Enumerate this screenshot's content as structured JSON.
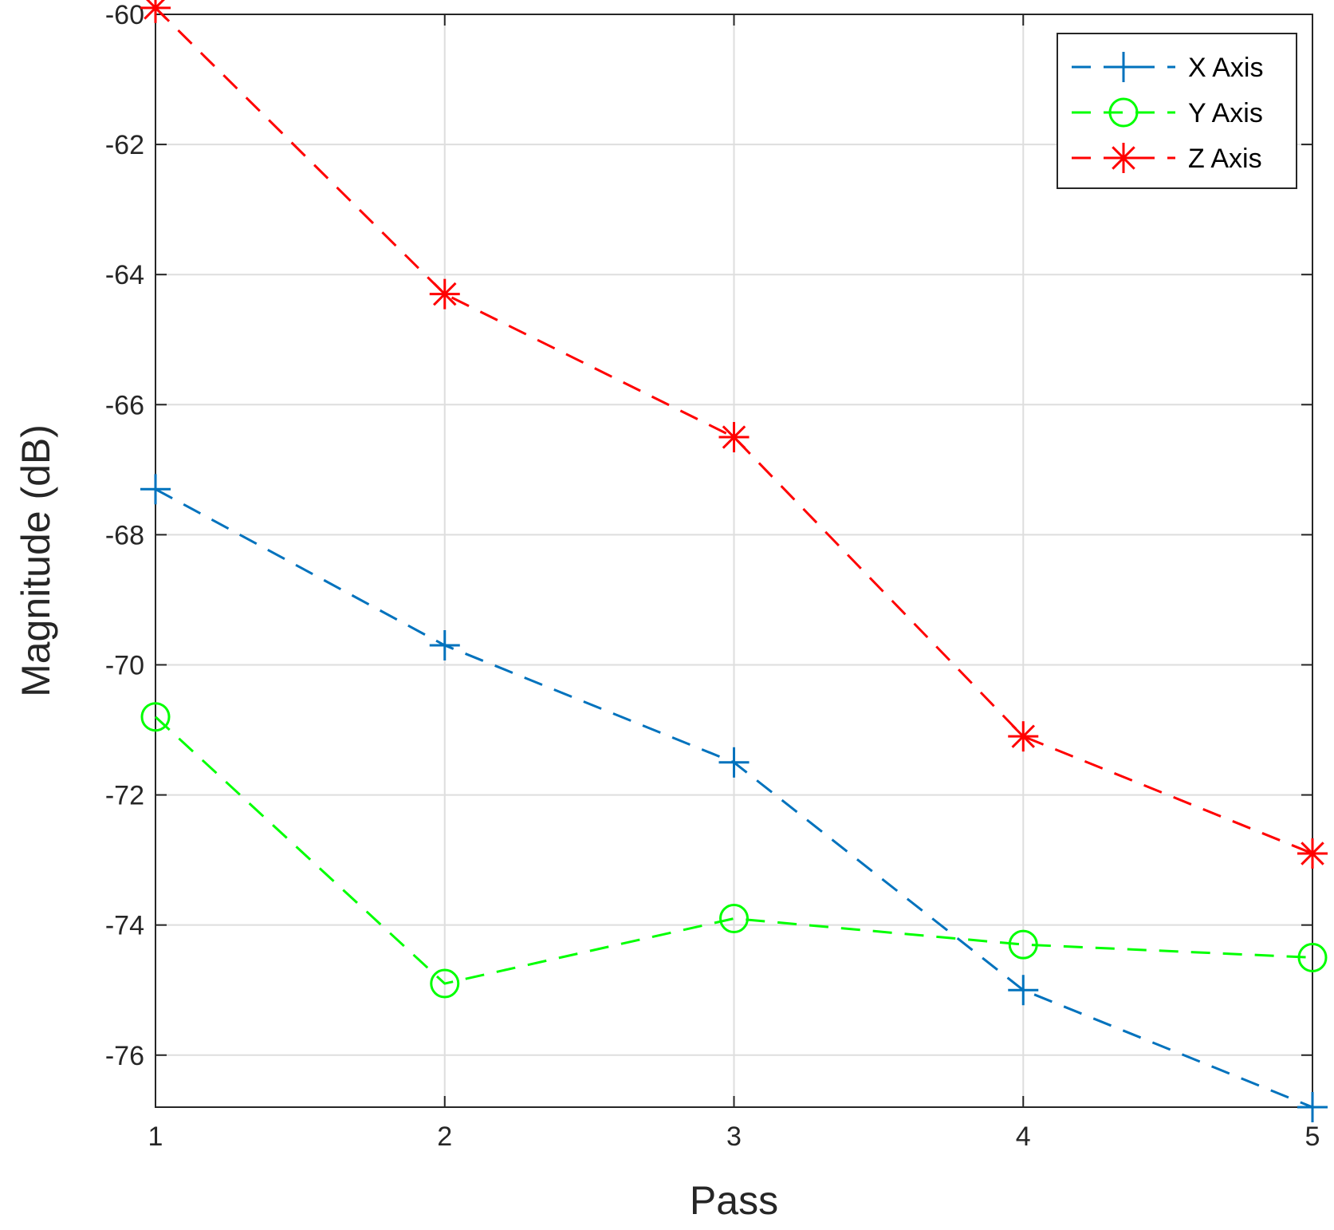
{
  "chart_data": {
    "type": "line",
    "title": "",
    "xlabel": "Pass",
    "ylabel": "Magnitude (dB)",
    "x": [
      1,
      2,
      3,
      4,
      5
    ],
    "xlim": [
      1,
      5
    ],
    "ylim": [
      -76.8,
      -60
    ],
    "xticks": [
      "1",
      "2",
      "3",
      "4",
      "5"
    ],
    "yticks": [
      "-60",
      "-62",
      "-64",
      "-66",
      "-68",
      "-70",
      "-72",
      "-74",
      "-76"
    ],
    "grid": true,
    "legend_position": "top-right",
    "series": [
      {
        "name": "X Axis",
        "color": "#0072BD",
        "marker": "plus",
        "linestyle": "dashed",
        "values": [
          -67.3,
          -69.7,
          -71.5,
          -75.0,
          -76.8
        ]
      },
      {
        "name": "Y Axis",
        "color": "#00FF00",
        "marker": "circle",
        "linestyle": "dashed",
        "values": [
          -70.8,
          -74.9,
          -73.9,
          -74.3,
          -74.5
        ]
      },
      {
        "name": "Z Axis",
        "color": "#FF0000",
        "marker": "asterisk",
        "linestyle": "dashed",
        "values": [
          -59.9,
          -64.3,
          -66.5,
          -71.1,
          -72.9
        ]
      }
    ]
  }
}
